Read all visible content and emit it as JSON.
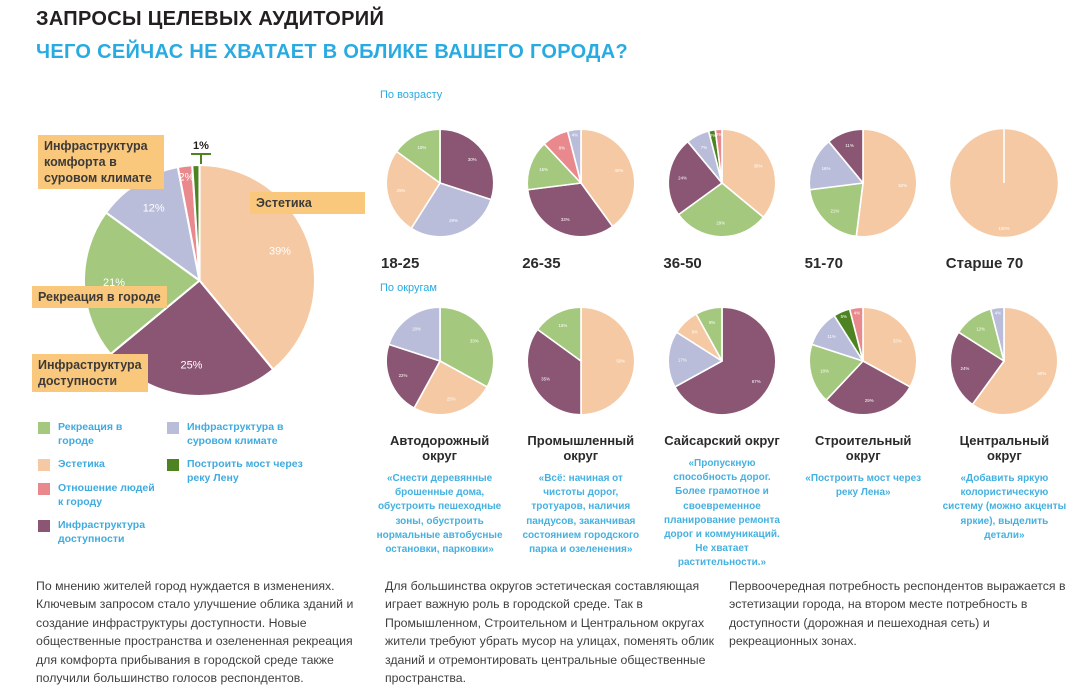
{
  "header": {
    "title": "ЗАПРОСЫ ЦЕЛЕВЫХ АУДИТОРИЙ",
    "subtitle": "ЧЕГО СЕЙЧАС НЕ ХВАТАЕТ В ОБЛИКЕ ВАШЕГО ГОРОДА?"
  },
  "colors": {
    "recreation": "#a4c87d",
    "aesthetics": "#f5c9a3",
    "attitude": "#e9898e",
    "accessibility": "#8b5674",
    "climate": "#b9bdd9",
    "bridge": "#4e8321",
    "label_bg": "#f9c87d",
    "accent_blue": "#29abe2",
    "legend_text": "#3fabdf"
  },
  "legend": {
    "columns": [
      [
        {
          "key": "recreation",
          "label": "Рекреация в городе"
        },
        {
          "key": "aesthetics",
          "label": "Эстетика"
        },
        {
          "key": "attitude",
          "label": "Отношение людей к городу"
        },
        {
          "key": "accessibility",
          "label": "Инфраструктура доступности"
        }
      ],
      [
        {
          "key": "climate",
          "label": "Инфраструктура в суровом климате"
        },
        {
          "key": "bridge",
          "label": "Построить мост через реку Лену"
        }
      ]
    ]
  },
  "chart_data": {
    "type": "pie",
    "units": "%",
    "categories": [
      "Рекреация в городе",
      "Эстетика",
      "Отношение людей к городу",
      "Инфраструктура доступности",
      "Инфраструктура в суровом климате",
      "Построить мост через реку Лену"
    ],
    "main": {
      "slices": [
        {
          "key": "aesthetics",
          "label": "Эстетика",
          "value": 39
        },
        {
          "key": "accessibility",
          "label": "Инфраструктура доступности",
          "value": 25
        },
        {
          "key": "recreation",
          "label": "Рекреация в городе",
          "value": 21
        },
        {
          "key": "climate",
          "label": "Инфраструктура комфорта в суровом климате",
          "value": 12
        },
        {
          "key": "attitude",
          "label": "Отношение людей к городу",
          "value": 2
        },
        {
          "key": "bridge",
          "label": "Построить мост через реку Лену",
          "value": 1,
          "hide_label": true
        }
      ],
      "callouts": [
        {
          "text": "Инфраструктура комфорта в суровом климате"
        },
        {
          "text": "Эстетика"
        },
        {
          "text": "Рекреация в городе"
        },
        {
          "text": "Инфраструктура доступности"
        }
      ],
      "sliver_callout": "1%"
    },
    "by_age": {
      "section_label": "По возрасту",
      "charts": [
        {
          "id": "18-25",
          "label": "18-25",
          "slices": [
            {
              "key": "accessibility",
              "value": 30
            },
            {
              "key": "climate",
              "value": 29
            },
            {
              "key": "aesthetics",
              "value": 26
            },
            {
              "key": "recreation",
              "value": 15
            }
          ]
        },
        {
          "id": "26-35",
          "label": "26-35",
          "slices": [
            {
              "key": "aesthetics",
              "value": 40
            },
            {
              "key": "accessibility",
              "value": 33
            },
            {
              "key": "recreation",
              "value": 15
            },
            {
              "key": "attitude",
              "value": 8
            },
            {
              "key": "climate",
              "value": 4
            }
          ]
        },
        {
          "id": "36-50",
          "label": "36-50",
          "slices": [
            {
              "key": "aesthetics",
              "value": 36
            },
            {
              "key": "recreation",
              "value": 29
            },
            {
              "key": "accessibility",
              "value": 24
            },
            {
              "key": "climate",
              "value": 7
            },
            {
              "key": "bridge",
              "value": 2
            },
            {
              "key": "attitude",
              "value": 2
            }
          ]
        },
        {
          "id": "51-70",
          "label": "51-70",
          "slices": [
            {
              "key": "aesthetics",
              "value": 52
            },
            {
              "key": "recreation",
              "value": 21
            },
            {
              "key": "climate",
              "value": 16
            },
            {
              "key": "accessibility",
              "value": 11
            }
          ]
        },
        {
          "id": "70-plus",
          "label": "Старше 70",
          "slices": [
            {
              "key": "aesthetics",
              "value": 100
            }
          ]
        }
      ]
    },
    "by_district": {
      "section_label": "По округам",
      "charts": [
        {
          "id": "avtodorozhny",
          "label": "Автодорожный округ",
          "quote": "«Снести деревянные брошенные дома, обустроить пешеходные зоны, обустроить нормальные автобусные остановки, парковки»",
          "slices": [
            {
              "key": "recreation",
              "value": 33
            },
            {
              "key": "aesthetics",
              "value": 25
            },
            {
              "key": "accessibility",
              "value": 22
            },
            {
              "key": "climate",
              "value": 20
            }
          ]
        },
        {
          "id": "promyshlenny",
          "label": "Промышленный округ",
          "quote": "«Всё: начиная от чистоты дорог, тротуаров, наличия пандусов, заканчивая состоянием городского парка и озеленения»",
          "slices": [
            {
              "key": "aesthetics",
              "value": 50
            },
            {
              "key": "accessibility",
              "value": 35
            },
            {
              "key": "recreation",
              "value": 15
            }
          ]
        },
        {
          "id": "saysarsky",
          "label": "Сайсарский округ",
          "quote": "«Пропускную способность дорог. Более грамотное и своевременное планирование ремонта дорог и коммуникаций. Не хватает растительности.»",
          "slices": [
            {
              "key": "accessibility",
              "value": 67
            },
            {
              "key": "climate",
              "value": 17
            },
            {
              "key": "aesthetics",
              "value": 8
            },
            {
              "key": "recreation",
              "value": 8
            }
          ]
        },
        {
          "id": "stroitelny",
          "label": "Строительный округ",
          "quote": "«Построить мост через реку Лена»",
          "slices": [
            {
              "key": "aesthetics",
              "value": 33
            },
            {
              "key": "accessibility",
              "value": 29
            },
            {
              "key": "recreation",
              "value": 18
            },
            {
              "key": "climate",
              "value": 11
            },
            {
              "key": "bridge",
              "value": 5
            },
            {
              "key": "attitude",
              "value": 4
            }
          ]
        },
        {
          "id": "tsentralny",
          "label": "Центральный округ",
          "quote": "«Добавить яркую колористическую систему (можно акценты яркие), выделить детали»",
          "slices": [
            {
              "key": "aesthetics",
              "value": 60
            },
            {
              "key": "accessibility",
              "value": 24
            },
            {
              "key": "recreation",
              "value": 12
            },
            {
              "key": "climate",
              "value": 4
            }
          ]
        }
      ]
    }
  },
  "footnotes": [
    "По мнению жителей город нуждается в изменениях. Ключевым запросом стало улучшение облика зданий и создание инфраструктуры доступности. Новые общественные пространства и озелененная рекреация для комфорта прибывания в городской среде также получили большинство голосов респондентов.",
    "Для большинства округов эстетическая составляющая играет важную роль в городской среде. Так в Промышленном, Строительном и Центральном округах жители требуют убрать мусор на улицах, поменять облик зданий и отремонтировать центральные общественные пространства.",
    "Первоочередная потребность респондентов выражается в эстетизации города, на втором месте потребность в доступности (дорожная и пешеходная сеть) и рекреационных зонах."
  ]
}
